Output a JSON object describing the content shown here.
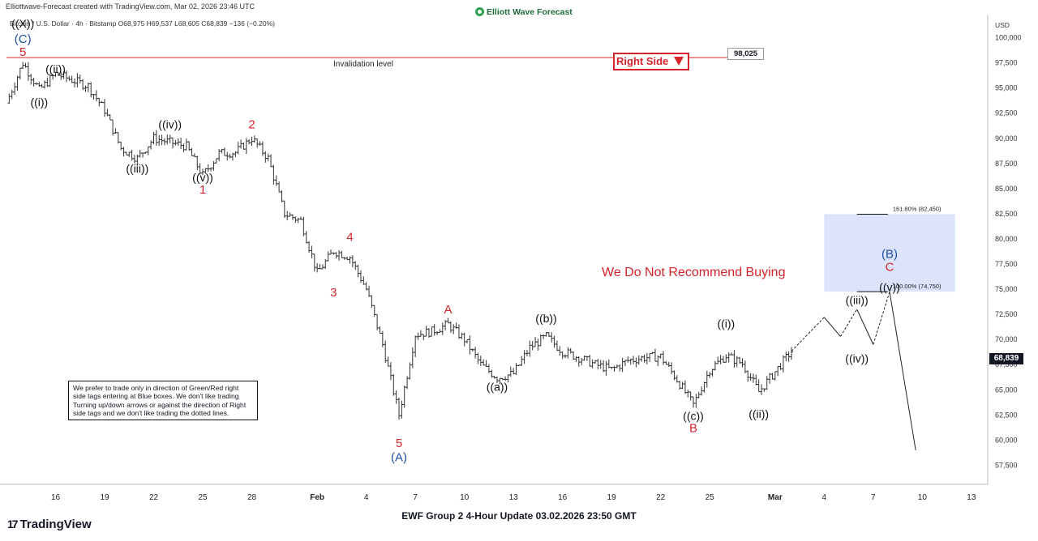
{
  "header": {
    "credit": "Elliottwave-Forecast created with TradingView.com, Mar 02, 2026 23:46 UTC",
    "symbol_info": "Bitcoin / U.S. Dollar · 4h · Bitstamp  O68,975  H69,537  L68,605  C68,839  −136 (−0.20%)",
    "brand": "Elliott Wave Forecast",
    "currency": "USD",
    "last_price": "68,839"
  },
  "annotations": {
    "right_side": "Right Side",
    "invalidation_label": "Invalidation level",
    "invalidation_value": "98,025",
    "no_buy": "We Do Not Recommend Buying",
    "fib_161": "161.80% (82,450)",
    "fib_100": "100.00% (74,750)",
    "note": "We prefer to trade only in direction of Green/Red right side tags entering at Blue boxes. We don't like trading Turning up/down arrows or against the direction of Right side tags and we don't like trading the dotted lines."
  },
  "footer": {
    "title": "EWF Group 2 4-Hour Update 03.02.2026 23:50 GMT",
    "logo": "TradingView",
    "logo_mark": "17"
  },
  "colors": {
    "red": "#d6242c",
    "blue": "#1f4fa3",
    "box": "#dbe4fb",
    "candle": "#333333"
  },
  "chart_data": {
    "type": "candlestick",
    "title": "",
    "x_ticks": [
      "16",
      "19",
      "22",
      "25",
      "28",
      "Feb",
      "4",
      "7",
      "10",
      "13",
      "16",
      "19",
      "22",
      "25",
      "Mar",
      "4",
      "7",
      "10",
      "13"
    ],
    "y_ticks": [
      "100,000",
      "97,500",
      "95,000",
      "92,500",
      "90,000",
      "87,500",
      "85,000",
      "82,500",
      "80,000",
      "77,500",
      "75,000",
      "72,500",
      "70,000",
      "67,500",
      "65,000",
      "62,500",
      "60,000",
      "57,500"
    ],
    "ylim": [
      55600,
      102300
    ],
    "approx_price_path": [
      {
        "date": "Jan 13",
        "price": 93500
      },
      {
        "date": "Jan 14",
        "price": 97500
      },
      {
        "date": "Jan 15",
        "price": 94800
      },
      {
        "date": "Jan 16",
        "price": 96400
      },
      {
        "date": "Jan 18",
        "price": 95200
      },
      {
        "date": "Jan 19",
        "price": 92800
      },
      {
        "date": "Jan 20",
        "price": 89000
      },
      {
        "date": "Jan 21",
        "price": 88000
      },
      {
        "date": "Jan 22",
        "price": 90000
      },
      {
        "date": "Jan 24",
        "price": 89200
      },
      {
        "date": "Jan 25",
        "price": 86300
      },
      {
        "date": "Jan 26",
        "price": 88500
      },
      {
        "date": "Jan 27",
        "price": 88600
      },
      {
        "date": "Jan 28",
        "price": 90000
      },
      {
        "date": "Jan 29",
        "price": 88000
      },
      {
        "date": "Jan 30",
        "price": 82500
      },
      {
        "date": "Jan 31",
        "price": 81800
      },
      {
        "date": "Feb 01",
        "price": 76600
      },
      {
        "date": "Feb 02",
        "price": 78800
      },
      {
        "date": "Feb 03",
        "price": 78200
      },
      {
        "date": "Feb 04",
        "price": 75000
      },
      {
        "date": "Feb 05",
        "price": 69500
      },
      {
        "date": "Feb 06",
        "price": 62500
      },
      {
        "date": "Feb 07",
        "price": 70500
      },
      {
        "date": "Feb 08",
        "price": 70800
      },
      {
        "date": "Feb 09",
        "price": 71500
      },
      {
        "date": "Feb 10",
        "price": 70000
      },
      {
        "date": "Feb 11",
        "price": 67500
      },
      {
        "date": "Feb 12",
        "price": 66200
      },
      {
        "date": "Feb 13",
        "price": 66600
      },
      {
        "date": "Feb 14",
        "price": 69200
      },
      {
        "date": "Feb 15",
        "price": 70300
      },
      {
        "date": "Feb 16",
        "price": 68800
      },
      {
        "date": "Feb 17",
        "price": 68200
      },
      {
        "date": "Feb 18",
        "price": 67500
      },
      {
        "date": "Feb 19",
        "price": 67000
      },
      {
        "date": "Feb 20",
        "price": 67900
      },
      {
        "date": "Feb 21",
        "price": 68200
      },
      {
        "date": "Feb 22",
        "price": 68300
      },
      {
        "date": "Feb 23",
        "price": 66000
      },
      {
        "date": "Feb 24",
        "price": 63500
      },
      {
        "date": "Feb 25",
        "price": 67000
      },
      {
        "date": "Feb 26",
        "price": 68400
      },
      {
        "date": "Feb 27",
        "price": 67600
      },
      {
        "date": "Feb 28",
        "price": 64800
      },
      {
        "date": "Mar 01",
        "price": 66800
      },
      {
        "date": "Mar 02",
        "price": 68839
      }
    ],
    "wave_labels": [
      {
        "text": "((X))",
        "date": "Jan 14",
        "price": 101000,
        "color": "black"
      },
      {
        "text": "(C)",
        "date": "Jan 14",
        "price": 99500,
        "color": "blue"
      },
      {
        "text": "5",
        "date": "Jan 14",
        "price": 98200,
        "color": "red"
      },
      {
        "text": "((i))",
        "date": "Jan 15",
        "price": 93200,
        "color": "black"
      },
      {
        "text": "((ii))",
        "date": "Jan 16",
        "price": 96500,
        "color": "black"
      },
      {
        "text": "((iii))",
        "date": "Jan 21",
        "price": 86600,
        "color": "black"
      },
      {
        "text": "((iv))",
        "date": "Jan 23",
        "price": 91000,
        "color": "black"
      },
      {
        "text": "((v))",
        "date": "Jan 25",
        "price": 85700,
        "color": "black"
      },
      {
        "text": "1",
        "date": "Jan 25",
        "price": 84500,
        "color": "red"
      },
      {
        "text": "2",
        "date": "Jan 28",
        "price": 91000,
        "color": "red"
      },
      {
        "text": "3",
        "date": "Feb 02",
        "price": 74300,
        "color": "red"
      },
      {
        "text": "4",
        "date": "Feb 03",
        "price": 79800,
        "color": "red"
      },
      {
        "text": "5",
        "date": "Feb 06",
        "price": 59300,
        "color": "red"
      },
      {
        "text": "(A)",
        "date": "Feb 06",
        "price": 57900,
        "color": "blue"
      },
      {
        "text": "A",
        "date": "Feb 09",
        "price": 72600,
        "color": "red"
      },
      {
        "text": "((a))",
        "date": "Feb 12",
        "price": 64900,
        "color": "black"
      },
      {
        "text": "((b))",
        "date": "Feb 15",
        "price": 71700,
        "color": "black"
      },
      {
        "text": "((c))",
        "date": "Feb 24",
        "price": 62000,
        "color": "black"
      },
      {
        "text": "B",
        "date": "Feb 24",
        "price": 60800,
        "color": "red"
      },
      {
        "text": "((i))",
        "date": "Feb 26",
        "price": 71200,
        "color": "black"
      },
      {
        "text": "((ii))",
        "date": "Feb 28",
        "price": 62200,
        "color": "black"
      },
      {
        "text": "((iii))",
        "date": "Mar 06",
        "price": 73500,
        "color": "black"
      },
      {
        "text": "((iv))",
        "date": "Mar 06",
        "price": 67700,
        "color": "black"
      },
      {
        "text": "((v))",
        "date": "Mar 08",
        "price": 74800,
        "color": "black"
      },
      {
        "text": "(B)",
        "date": "Mar 08",
        "price": 78100,
        "color": "blue"
      },
      {
        "text": "C",
        "date": "Mar 08",
        "price": 76800,
        "color": "red"
      }
    ],
    "projection_path": [
      {
        "date": "Mar 02",
        "price": 68839
      },
      {
        "date": "Mar 04",
        "price": 72200
      },
      {
        "date": "Mar 05",
        "price": 70300
      },
      {
        "date": "Mar 06",
        "price": 73000
      },
      {
        "date": "Mar 07",
        "price": 69500
      },
      {
        "date": "Mar 08",
        "price": 74750
      }
    ],
    "expected_decline": [
      {
        "date": "Mar 08",
        "price": 74750
      },
      {
        "date": "Mar 09",
        "price": 59000
      }
    ],
    "blue_box": {
      "from_date": "Mar 04",
      "to_date": "Mar 12",
      "price_low": 74750,
      "price_high": 82450
    },
    "fib_levels": [
      {
        "label": "161.80% (82,450)",
        "price": 82450
      },
      {
        "label": "100.00% (74,750)",
        "price": 74750
      }
    ],
    "invalidation": {
      "price": 98025,
      "label": "Invalidation level"
    }
  }
}
